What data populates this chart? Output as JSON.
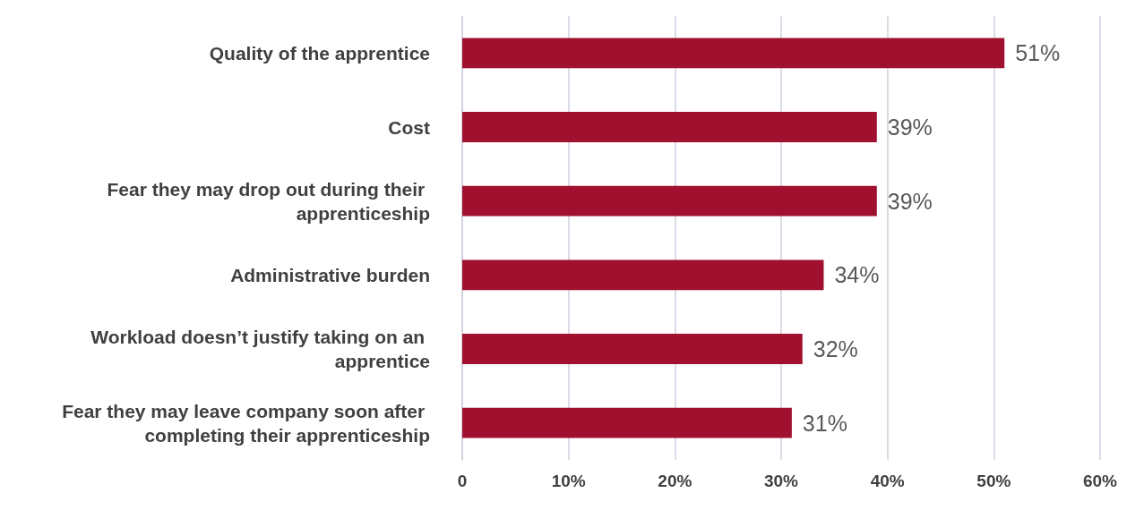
{
  "chart_data": {
    "type": "bar",
    "orientation": "horizontal",
    "categories": [
      "Quality of the apprentice",
      "Cost",
      "Fear they may drop out during their apprenticeship",
      "Administrative burden",
      "Workload doesn’t justify taking on an apprentice",
      "Fear they may leave company soon after completing their apprenticeship"
    ],
    "values": [
      51,
      39,
      39,
      34,
      32,
      31
    ],
    "color": "#a0102f",
    "data_labels": true,
    "value_labels": [
      "51%",
      "39%",
      "39%",
      "34%",
      "32%",
      "31%"
    ],
    "xlim": [
      0,
      60
    ],
    "xticks": [
      0,
      {
        "value": 10,
        "label": "10%"
      },
      {
        "value": 20,
        "label": "20%"
      },
      {
        "value": 30,
        "label": "30%"
      },
      {
        "value": 40,
        "label": "40%"
      },
      {
        "value": 50,
        "label": "50%"
      },
      {
        "value": 60,
        "label": "60%"
      }
    ],
    "grid": "x"
  }
}
